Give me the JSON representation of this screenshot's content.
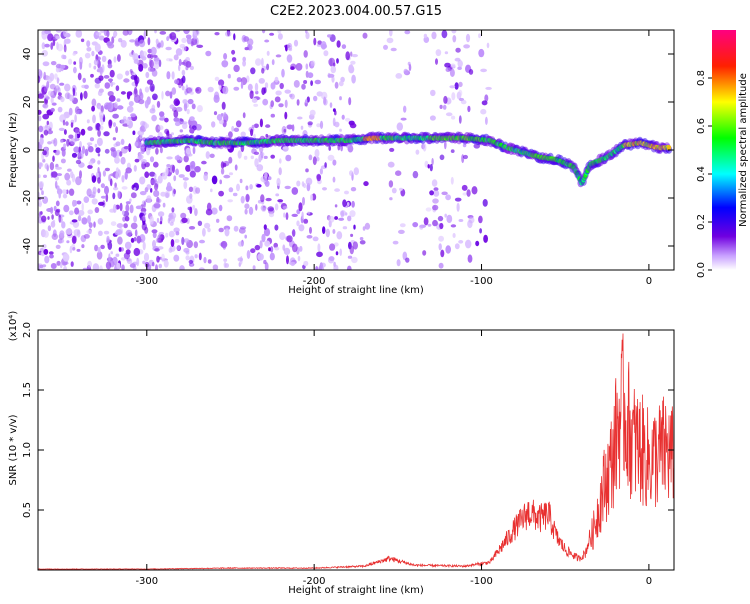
{
  "title": "C2E2.2023.004.00.57.G15",
  "chart_data": [
    {
      "type": "heatmap",
      "xlabel": "Height of straight line (km)",
      "ylabel": "Frequency (Hz)",
      "xlim": [
        -365,
        15
      ],
      "ylim": [
        -50,
        50
      ],
      "x_ticks": [
        -300,
        -200,
        -100,
        0
      ],
      "y_ticks": [
        -40,
        -20,
        0,
        20,
        40
      ],
      "colorbar": {
        "label": "Normalized spectral amplitude",
        "range": [
          0,
          1
        ],
        "ticks": [
          0.0,
          0.2,
          0.4,
          0.6,
          0.8
        ],
        "colors": [
          "#ffffff",
          "#b070ff",
          "#6000e0",
          "#0000ff",
          "#00ffff",
          "#00ff00",
          "#ffff00",
          "#ff0000",
          "#ff0080"
        ]
      },
      "ridge": [
        {
          "x": -300,
          "y": 3
        },
        {
          "x": -275,
          "y": 4
        },
        {
          "x": -260,
          "y": 3
        },
        {
          "x": -240,
          "y": 3
        },
        {
          "x": -220,
          "y": 4
        },
        {
          "x": -200,
          "y": 4
        },
        {
          "x": -180,
          "y": 4
        },
        {
          "x": -165,
          "y": 5
        },
        {
          "x": -150,
          "y": 5
        },
        {
          "x": -130,
          "y": 5
        },
        {
          "x": -110,
          "y": 5
        },
        {
          "x": -95,
          "y": 4
        },
        {
          "x": -85,
          "y": 1
        },
        {
          "x": -75,
          "y": -1
        },
        {
          "x": -65,
          "y": -3
        },
        {
          "x": -55,
          "y": -4
        },
        {
          "x": -45,
          "y": -7
        },
        {
          "x": -40,
          "y": -14
        },
        {
          "x": -35,
          "y": -6
        },
        {
          "x": -25,
          "y": -3
        },
        {
          "x": -15,
          "y": 2
        },
        {
          "x": -5,
          "y": 3
        },
        {
          "x": 5,
          "y": 1
        },
        {
          "x": 12,
          "y": 1
        }
      ]
    },
    {
      "type": "line",
      "xlabel": "Height of straight line (km)",
      "ylabel": "SNR (10 * v/v)",
      "y_multiplier": "(x10⁴)",
      "xlim": [
        -365,
        15
      ],
      "ylim": [
        0,
        2.0
      ],
      "x_ticks": [
        -300,
        -200,
        -100,
        0
      ],
      "y_ticks": [
        0.5,
        1.0,
        1.5,
        2.0
      ],
      "series_color": "#e83030",
      "envelope": [
        {
          "x": -365,
          "y": 0.01
        },
        {
          "x": -300,
          "y": 0.01
        },
        {
          "x": -250,
          "y": 0.02
        },
        {
          "x": -200,
          "y": 0.02
        },
        {
          "x": -170,
          "y": 0.04
        },
        {
          "x": -155,
          "y": 0.12
        },
        {
          "x": -140,
          "y": 0.05
        },
        {
          "x": -110,
          "y": 0.04
        },
        {
          "x": -95,
          "y": 0.08
        },
        {
          "x": -88,
          "y": 0.25
        },
        {
          "x": -80,
          "y": 0.45
        },
        {
          "x": -72,
          "y": 0.62
        },
        {
          "x": -65,
          "y": 0.55
        },
        {
          "x": -60,
          "y": 0.6
        },
        {
          "x": -55,
          "y": 0.35
        },
        {
          "x": -50,
          "y": 0.22
        },
        {
          "x": -42,
          "y": 0.12
        },
        {
          "x": -38,
          "y": 0.18
        },
        {
          "x": -33,
          "y": 0.5
        },
        {
          "x": -28,
          "y": 0.95
        },
        {
          "x": -22,
          "y": 1.35
        },
        {
          "x": -18,
          "y": 1.85
        },
        {
          "x": -15,
          "y": 2.0
        },
        {
          "x": -10,
          "y": 1.6
        },
        {
          "x": -5,
          "y": 1.5
        },
        {
          "x": 0,
          "y": 1.35
        },
        {
          "x": 5,
          "y": 1.4
        },
        {
          "x": 10,
          "y": 1.5
        },
        {
          "x": 15,
          "y": 1.35
        }
      ]
    }
  ]
}
